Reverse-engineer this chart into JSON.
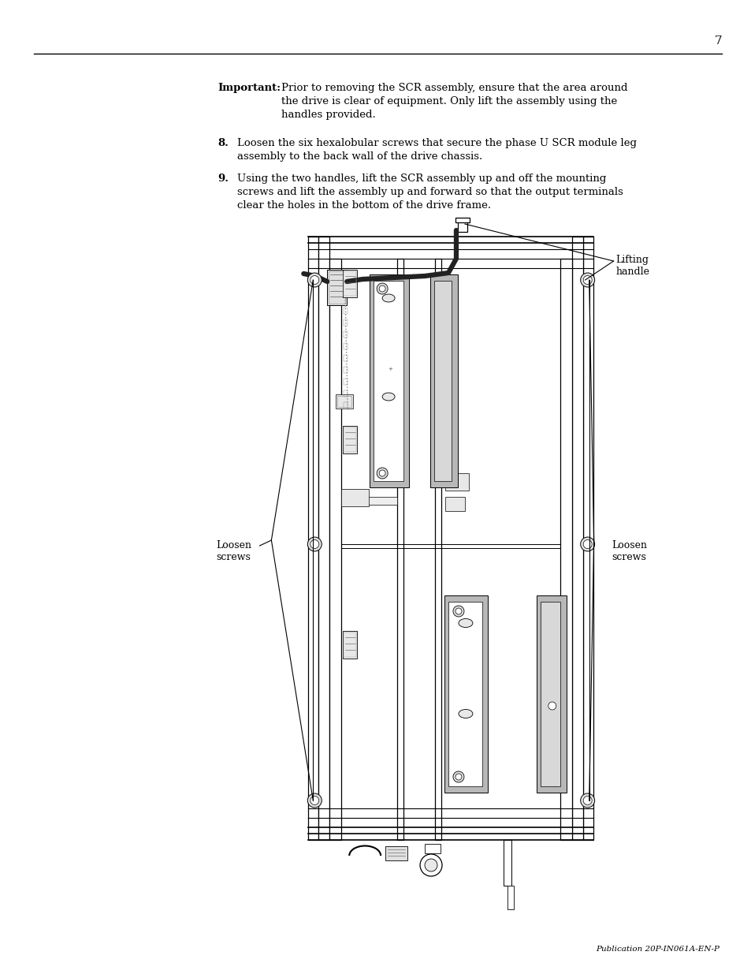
{
  "page_number": "7",
  "publication": "Publication 20P-IN061A-EN-P",
  "background_color": "#ffffff",
  "text_color": "#000000",
  "line_color": "#000000",
  "gray_fill": "#b8b8b8",
  "light_gray": "#d8d8d8",
  "dark_gray": "#888888",
  "important_label": "Important:",
  "important_line1": "Prior to removing the SCR assembly, ensure that the area around",
  "important_line2": "the drive is clear of equipment. Only lift the assembly using the",
  "important_line3": "handles provided.",
  "step8_num": "8.",
  "step8_line1": "Loosen the six hexalobular screws that secure the phase U SCR module leg",
  "step8_line2": "assembly to the back wall of the drive chassis.",
  "step9_num": "9.",
  "step9_line1": "Using the two handles, lift the SCR assembly up and off the mounting",
  "step9_line2": "screws and lift the assembly up and forward so that the output terminals",
  "step9_line3": "clear the holes in the bottom of the drive frame.",
  "label_lifting": "Lifting\nhandle",
  "label_loosen_left": "Loosen\nscrews",
  "label_loosen_right": "Loosen\nscrews"
}
